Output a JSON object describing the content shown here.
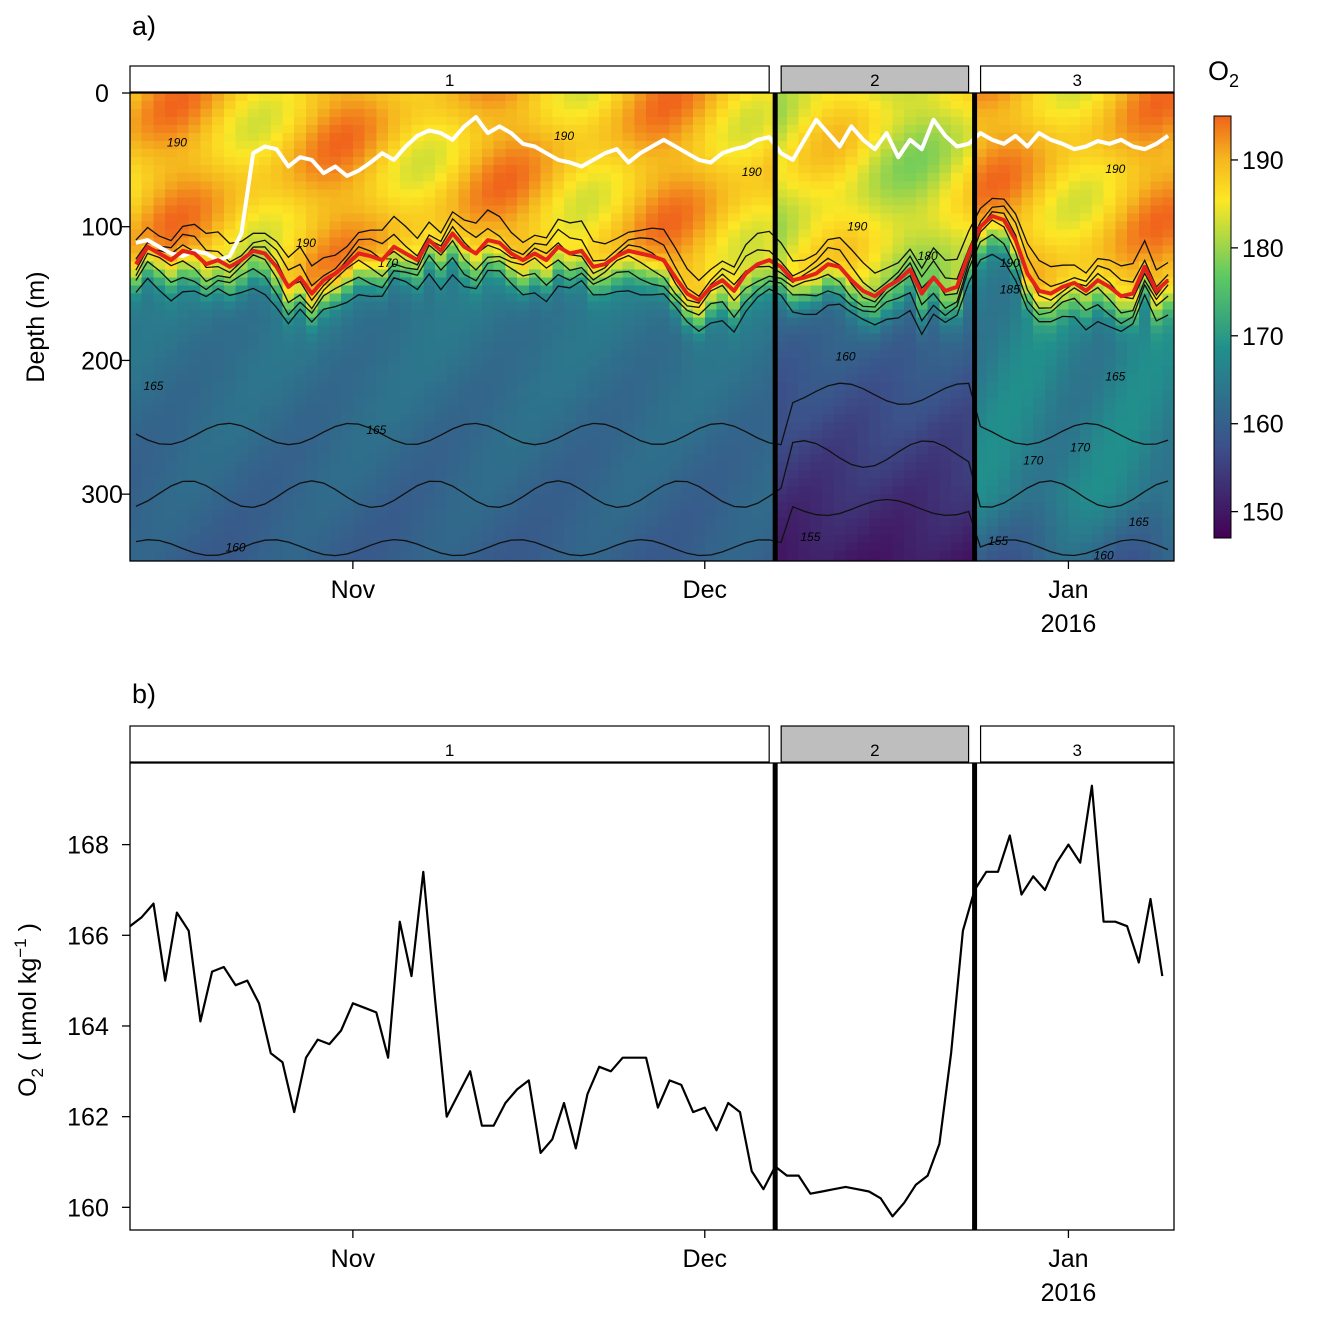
{
  "chart_data": [
    {
      "panel_label": "a)",
      "type": "heatmap",
      "ylabel": "Depth (m)",
      "ylim": [
        0,
        350
      ],
      "y_ticks": [
        0,
        100,
        200,
        300
      ],
      "x_ticks": [
        {
          "label": "Nov",
          "date": "2015-11-01"
        },
        {
          "label": "Dec",
          "date": "2015-12-01"
        },
        {
          "label": "Jan",
          "date": "2016-01-01"
        }
      ],
      "x_year_label": "2016",
      "xlim": [
        "2015-10-13",
        "2016-01-10"
      ],
      "periods": [
        {
          "label": "1",
          "start": "2015-10-13",
          "end": "2015-12-07",
          "shaded": false
        },
        {
          "label": "2",
          "start": "2015-12-07",
          "end": "2015-12-24",
          "shaded": true
        },
        {
          "label": "3",
          "start": "2015-12-24",
          "end": "2016-01-10",
          "shaded": false
        }
      ],
      "period_boundaries": [
        "2015-12-07",
        "2015-12-24"
      ],
      "colorbar": {
        "title": "O2",
        "range": [
          147,
          195
        ],
        "ticks": [
          150,
          160,
          170,
          180,
          190
        ],
        "colors": [
          "#440154",
          "#3b528b",
          "#21908c",
          "#5ec962",
          "#fde725",
          "#f5b51e",
          "#f0631c"
        ]
      },
      "contour_labels": [
        {
          "value": "190",
          "date": "2015-10-17",
          "depth": 40
        },
        {
          "value": "165",
          "date": "2015-10-15",
          "depth": 222
        },
        {
          "value": "160",
          "date": "2015-10-22",
          "depth": 343
        },
        {
          "value": "165",
          "date": "2015-11-03",
          "depth": 255
        },
        {
          "value": "190",
          "date": "2015-10-28",
          "depth": 115
        },
        {
          "value": "170",
          "date": "2015-11-04",
          "depth": 130
        },
        {
          "value": "190",
          "date": "2015-11-19",
          "depth": 35
        },
        {
          "value": "190",
          "date": "2015-12-05",
          "depth": 62
        },
        {
          "value": "190",
          "date": "2015-12-14",
          "depth": 103
        },
        {
          "value": "180",
          "date": "2015-12-20",
          "depth": 125
        },
        {
          "value": "160",
          "date": "2015-12-13",
          "depth": 200
        },
        {
          "value": "155",
          "date": "2015-12-10",
          "depth": 335
        },
        {
          "value": "190",
          "date": "2015-12-27",
          "depth": 130
        },
        {
          "value": "185",
          "date": "2015-12-27",
          "depth": 150
        },
        {
          "value": "170",
          "date": "2015-12-29",
          "depth": 278
        },
        {
          "value": "170",
          "date": "2016-01-02",
          "depth": 268
        },
        {
          "value": "165",
          "date": "2016-01-05",
          "depth": 215
        },
        {
          "value": "190",
          "date": "2016-01-05",
          "depth": 60
        },
        {
          "value": "165",
          "date": "2016-01-07",
          "depth": 324
        },
        {
          "value": "155",
          "date": "2015-12-26",
          "depth": 338
        },
        {
          "value": "160",
          "date": "2016-01-04",
          "depth": 349
        }
      ],
      "series": [
        {
          "color": "#ffffff",
          "x_start": "2015-10-13",
          "step_days": 1,
          "values": [
            112,
            110,
            115,
            120,
            122,
            118,
            120,
            125,
            122,
            105,
            45,
            40,
            42,
            55,
            48,
            50,
            60,
            55,
            62,
            58,
            52,
            45,
            50,
            40,
            32,
            28,
            30,
            35,
            25,
            18,
            30,
            25,
            30,
            38,
            40,
            45,
            50,
            52,
            55,
            50,
            45,
            42,
            52,
            45,
            40,
            35,
            40,
            45,
            50,
            52,
            45,
            42,
            40,
            35,
            33,
            45,
            50,
            35,
            20,
            30,
            40,
            25,
            35,
            42,
            30,
            48,
            35,
            42,
            20,
            32,
            40,
            38,
            30,
            35,
            38,
            32,
            40,
            30,
            35,
            38,
            42,
            40,
            36,
            38,
            35,
            40,
            42,
            38,
            32
          ]
        },
        {
          "color": "#e3231b",
          "x_start": "2015-10-13",
          "step_days": 1,
          "values": [
            128,
            115,
            120,
            125,
            118,
            120,
            128,
            125,
            130,
            125,
            118,
            120,
            130,
            145,
            138,
            150,
            140,
            135,
            128,
            120,
            122,
            125,
            115,
            120,
            125,
            110,
            118,
            105,
            115,
            120,
            110,
            112,
            120,
            125,
            120,
            125,
            115,
            120,
            118,
            130,
            128,
            122,
            118,
            120,
            122,
            125,
            138,
            150,
            155,
            145,
            140,
            148,
            135,
            128,
            125,
            130,
            140,
            138,
            135,
            128,
            130,
            140,
            148,
            152,
            145,
            140,
            132,
            150,
            138,
            148,
            145,
            120,
            100,
            92,
            95,
            110,
            135,
            148,
            150,
            145,
            142,
            148,
            140,
            145,
            152,
            150,
            130,
            148,
            140
          ]
        }
      ]
    },
    {
      "panel_label": "b)",
      "type": "line",
      "ylabel": "O2 ( µmol kg⁻¹ )",
      "ylim": [
        159.5,
        169.8
      ],
      "y_ticks": [
        160,
        162,
        164,
        166,
        168
      ],
      "x_ticks": [
        {
          "label": "Nov",
          "date": "2015-11-01"
        },
        {
          "label": "Dec",
          "date": "2015-12-01"
        },
        {
          "label": "Jan",
          "date": "2016-01-01"
        }
      ],
      "x_year_label": "2016",
      "xlim": [
        "2015-10-13",
        "2016-01-10"
      ],
      "periods": [
        {
          "label": "1",
          "start": "2015-10-13",
          "end": "2015-12-07",
          "shaded": false
        },
        {
          "label": "2",
          "start": "2015-12-07",
          "end": "2015-12-24",
          "shaded": true
        },
        {
          "label": "3",
          "start": "2015-12-24",
          "end": "2016-01-10",
          "shaded": false
        }
      ],
      "period_boundaries": [
        "2015-12-07",
        "2015-12-24"
      ],
      "series": [
        {
          "color": "#000000",
          "x_start": "2015-10-13",
          "step_days": 1,
          "values": [
            166.2,
            166.4,
            166.7,
            165.0,
            166.5,
            166.1,
            164.1,
            165.2,
            165.3,
            164.9,
            165.0,
            164.5,
            163.4,
            163.2,
            162.1,
            163.3,
            163.7,
            163.6,
            163.9,
            164.5,
            164.4,
            164.3,
            163.3,
            166.3,
            165.1,
            167.4,
            164.6,
            162.0,
            162.5,
            163.0,
            161.8,
            161.8,
            162.3,
            162.6,
            162.8,
            161.2,
            161.5,
            162.3,
            161.3,
            162.5,
            163.1,
            163.0,
            163.3,
            163.3,
            163.3,
            162.2,
            162.8,
            162.7,
            162.1,
            162.2,
            161.7,
            162.3,
            162.1,
            160.8,
            160.4,
            160.9,
            160.7,
            160.7,
            160.3,
            160.35,
            160.4,
            160.45,
            160.4,
            160.35,
            160.2,
            159.8,
            160.1,
            160.5,
            160.7,
            161.4,
            163.4,
            166.1,
            167.0,
            167.4,
            167.4,
            168.2,
            166.9,
            167.3,
            167.0,
            167.6,
            168.0,
            167.6,
            169.3,
            166.3,
            166.3,
            166.2,
            165.4,
            166.8,
            165.1
          ]
        }
      ]
    }
  ]
}
